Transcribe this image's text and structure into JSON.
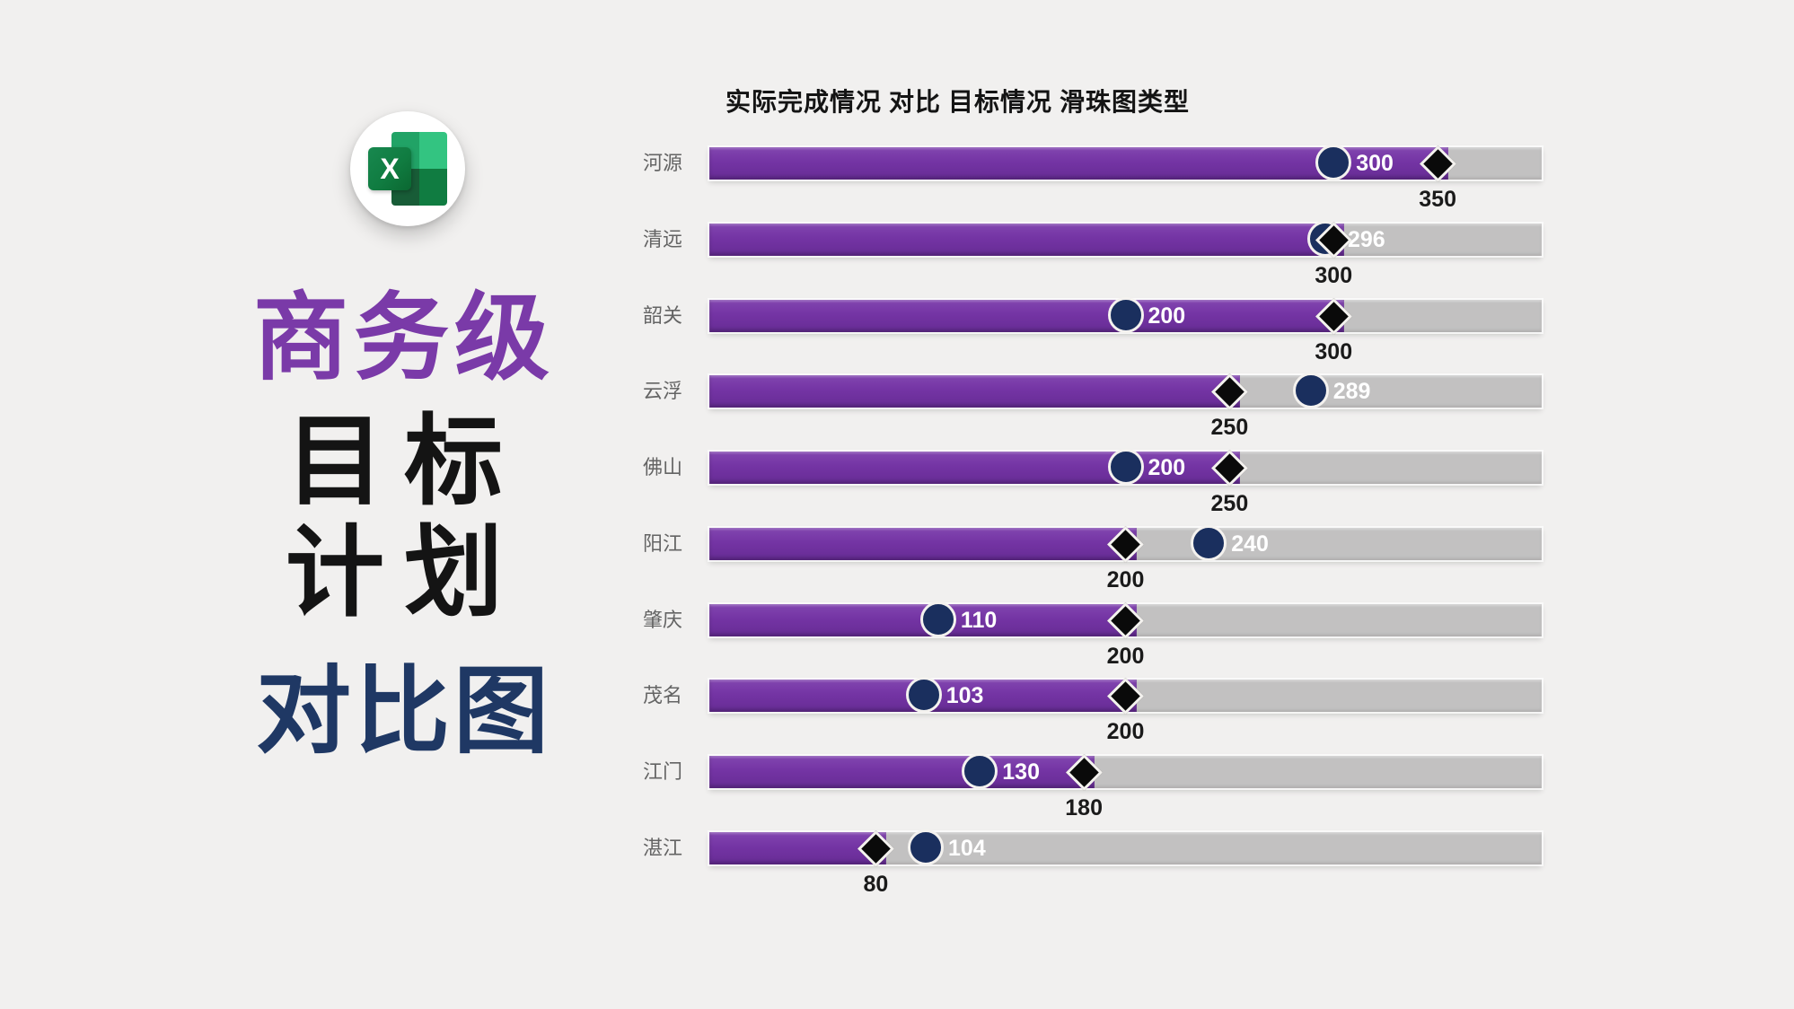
{
  "page": {
    "background": "#F1F0EF"
  },
  "branding": {
    "icon": "excel-icon",
    "icon_letter": "X",
    "lines": [
      {
        "text": "商务级",
        "color": "#7A3AA8"
      },
      {
        "text": "目标",
        "color": "#141414"
      },
      {
        "text": "计划",
        "color": "#141414"
      },
      {
        "text": "对比图",
        "color": "#1F3864"
      }
    ]
  },
  "chart_data": {
    "type": "bar",
    "variant": "bullet-slider (滑珠图): gray track 0-400, purple bar to target, diamond=target, circle=actual",
    "title": "实际完成情况 对比 目标情况 滑珠图类型",
    "categories": [
      "河源",
      "清远",
      "韶关",
      "云浮",
      "佛山",
      "阳江",
      "肇庆",
      "茂名",
      "江门",
      "湛江"
    ],
    "series": [
      {
        "name": "实际完成情况",
        "marker": "circle",
        "color": "#1A2F5E",
        "values": [
          300,
          296,
          200,
          289,
          200,
          240,
          110,
          103,
          130,
          104
        ]
      },
      {
        "name": "目标情况",
        "marker": "diamond",
        "color": "#0A0A0A",
        "values": [
          350,
          300,
          300,
          250,
          250,
          200,
          200,
          200,
          180,
          80
        ]
      }
    ],
    "xlim": [
      0,
      400
    ],
    "bar_color": "#7434A4",
    "track_color": "#C2C1C1",
    "grid": false,
    "legend": false,
    "actual_label_style": "white bold, right of circle marker",
    "target_label_style": "black bold, below diamond marker"
  }
}
